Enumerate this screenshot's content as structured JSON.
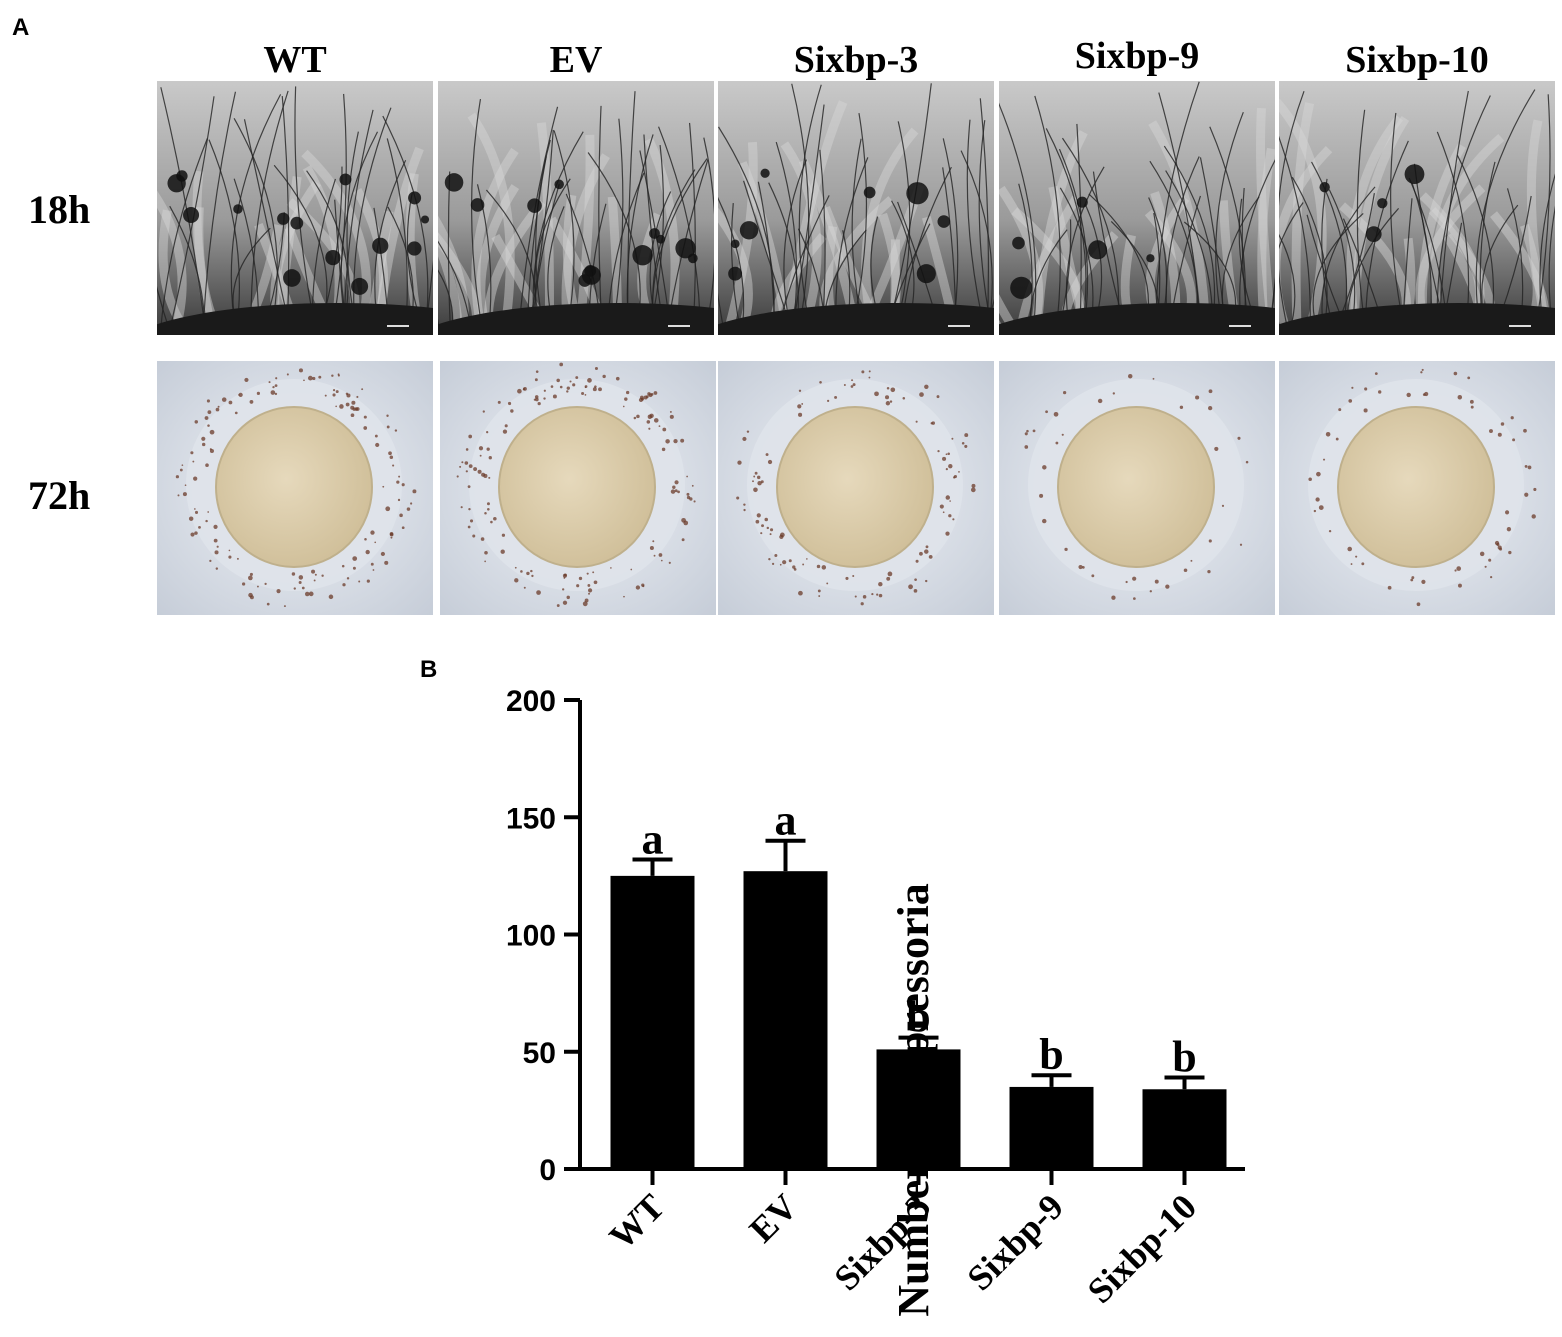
{
  "panel_a": {
    "letter": "A",
    "columns": [
      "WT",
      "EV",
      "Sixbp-3",
      "Sixbp-9",
      "Sixbp-10"
    ],
    "rows": [
      "18h",
      "72h"
    ]
  },
  "panel_b": {
    "letter": "B"
  },
  "chart_data": {
    "type": "bar",
    "title": "",
    "categories": [
      "WT",
      "EV",
      "Sixbp-3",
      "Sixbp-9",
      "Sixbp-10"
    ],
    "values": [
      125,
      127,
      51,
      35,
      34
    ],
    "errors": [
      7,
      13,
      5,
      5,
      5
    ],
    "significance_letters": [
      "a",
      "a",
      "b",
      "b",
      "b"
    ],
    "xlabel": "",
    "ylabel": "Number of appressoria",
    "ylim": [
      0,
      200
    ],
    "yticks": [
      0,
      50,
      100,
      150,
      200
    ],
    "bar_color": "#000000",
    "grid": false,
    "legend": "none"
  }
}
